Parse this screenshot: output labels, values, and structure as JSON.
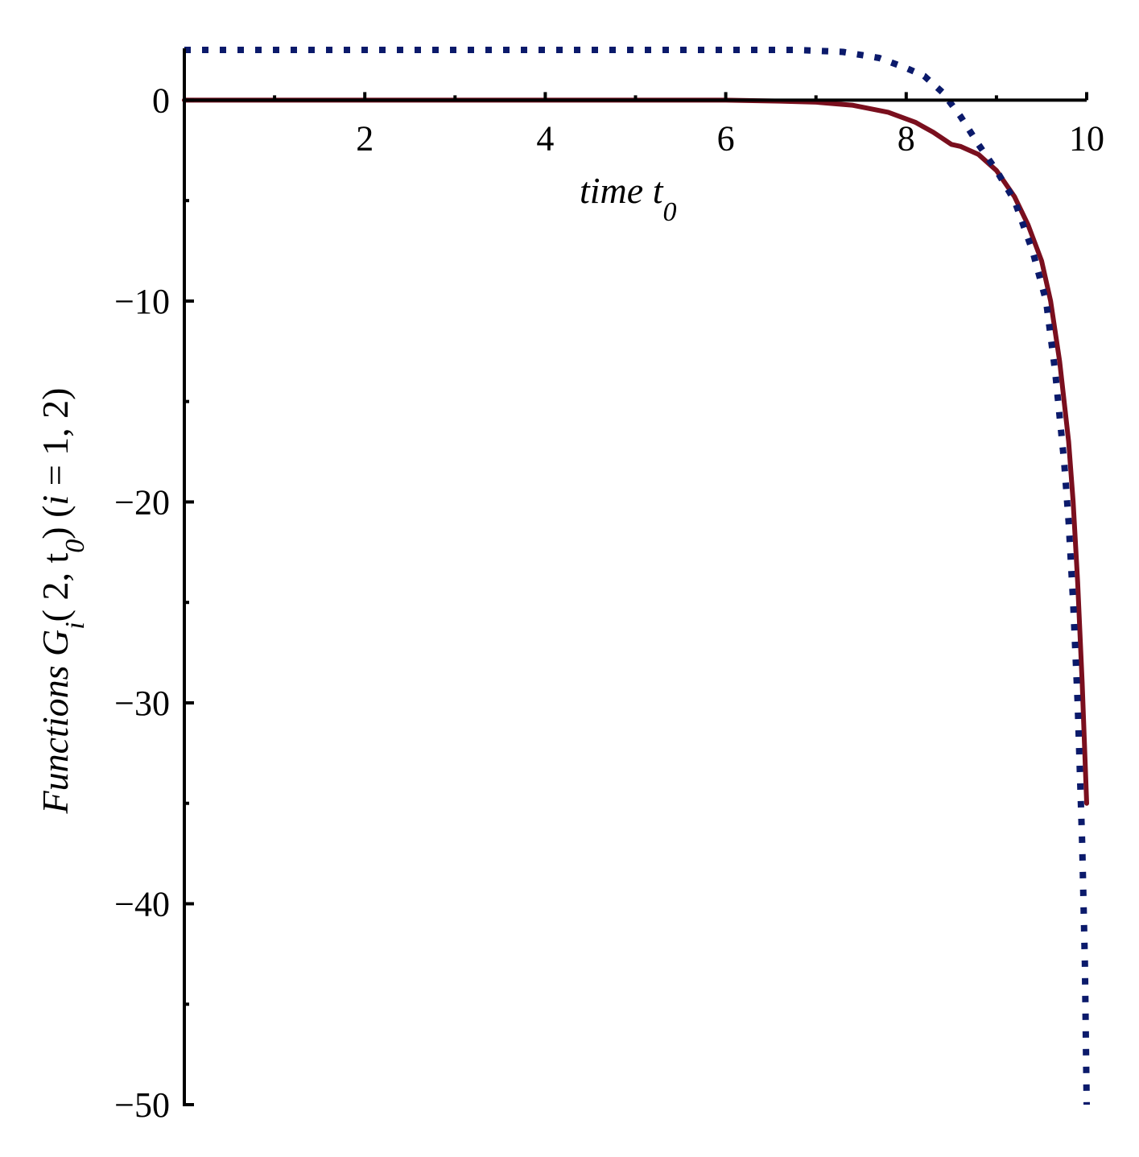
{
  "chart_data": {
    "type": "line",
    "title": "",
    "xlabel": "time t0",
    "ylabel": "Functions Gi( 2, t0) (i = 1, 2)",
    "xlim": [
      0,
      10
    ],
    "ylim": [
      -50,
      2.5
    ],
    "x_ticks": [
      2,
      4,
      6,
      8,
      10
    ],
    "x_tick_labels": [
      "2",
      "4",
      "6",
      "8",
      "10"
    ],
    "y_ticks": [
      0,
      -10,
      -20,
      -30,
      -40,
      -50
    ],
    "y_tick_labels": [
      "0",
      "−10",
      "−20",
      "−30",
      "−40",
      "−50"
    ],
    "grid": false,
    "legend": "none",
    "series": [
      {
        "color": "#7a0f1e",
        "style": "solid",
        "points": [
          [
            0,
            0
          ],
          [
            1,
            0
          ],
          [
            2,
            0
          ],
          [
            3,
            0
          ],
          [
            4,
            0
          ],
          [
            5,
            0
          ],
          [
            6,
            0
          ],
          [
            6.6,
            -0.05
          ],
          [
            7.0,
            -0.1
          ],
          [
            7.4,
            -0.25
          ],
          [
            7.8,
            -0.6
          ],
          [
            8.1,
            -1.1
          ],
          [
            8.3,
            -1.6
          ],
          [
            8.5,
            -2.2
          ],
          [
            8.6,
            -2.3
          ],
          [
            8.8,
            -2.7
          ],
          [
            9.0,
            -3.5
          ],
          [
            9.2,
            -4.8
          ],
          [
            9.35,
            -6.2
          ],
          [
            9.5,
            -8.0
          ],
          [
            9.6,
            -10.0
          ],
          [
            9.7,
            -13.0
          ],
          [
            9.8,
            -17.0
          ],
          [
            9.85,
            -20.0
          ],
          [
            9.9,
            -24.0
          ],
          [
            9.95,
            -29.0
          ],
          [
            10.0,
            -35.0
          ]
        ]
      },
      {
        "color": "#0b1a6b",
        "style": "dotted",
        "points": [
          [
            0,
            2.5
          ],
          [
            1,
            2.5
          ],
          [
            2,
            2.5
          ],
          [
            3,
            2.5
          ],
          [
            4,
            2.5
          ],
          [
            5,
            2.5
          ],
          [
            6,
            2.5
          ],
          [
            6.8,
            2.5
          ],
          [
            7.3,
            2.4
          ],
          [
            7.7,
            2.1
          ],
          [
            8.0,
            1.6
          ],
          [
            8.2,
            1.2
          ],
          [
            8.4,
            0.4
          ],
          [
            8.6,
            -0.8
          ],
          [
            8.8,
            -2.2
          ],
          [
            9.0,
            -3.5
          ],
          [
            9.2,
            -5.0
          ],
          [
            9.4,
            -7.5
          ],
          [
            9.55,
            -10.0
          ],
          [
            9.65,
            -13.5
          ],
          [
            9.75,
            -18.0
          ],
          [
            9.8,
            -21.0
          ],
          [
            9.85,
            -25.0
          ],
          [
            9.9,
            -30.0
          ],
          [
            9.95,
            -37.0
          ],
          [
            9.98,
            -43.0
          ],
          [
            10.0,
            -50.0
          ]
        ]
      }
    ]
  }
}
